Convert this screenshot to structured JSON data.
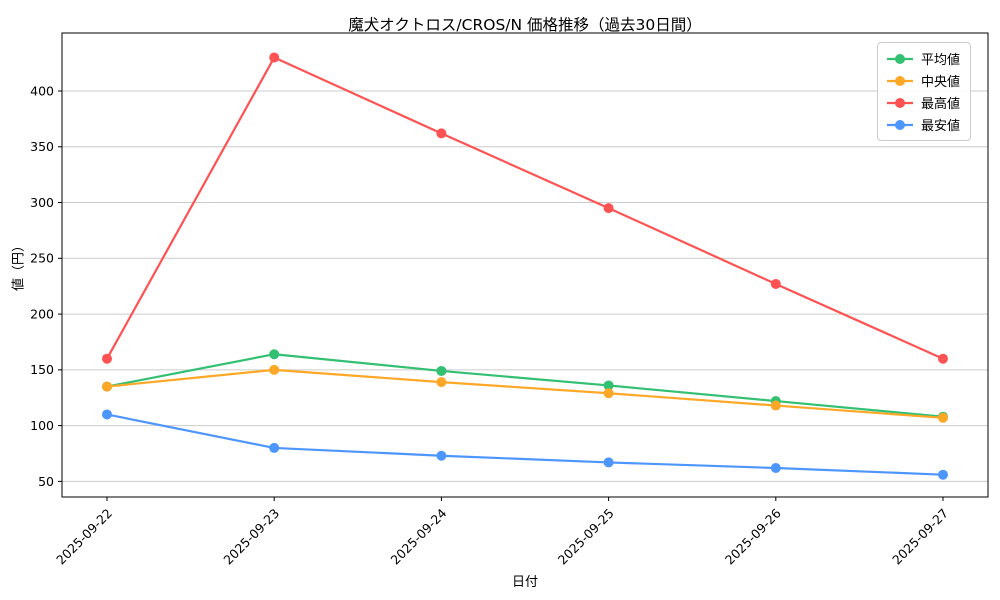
{
  "title": "魔犬オクトロス/CROS/N 価格推移（過去30日間）",
  "chart_data": {
    "type": "line",
    "title": "魔犬オクトロス/CROS/N 価格推移（過去30日間）",
    "xlabel": "日付",
    "ylabel": "値（円）",
    "categories": [
      "2025-09-22",
      "2025-09-23",
      "2025-09-24",
      "2025-09-25",
      "2025-09-26",
      "2025-09-27"
    ],
    "series": [
      {
        "name": "平均値",
        "color": "#33c072",
        "values": [
          135,
          164,
          149,
          136,
          122,
          108
        ]
      },
      {
        "name": "中央値",
        "color": "#ffa726",
        "values": [
          135,
          150,
          139,
          129,
          118,
          107
        ]
      },
      {
        "name": "最高値",
        "color": "#ff5252",
        "values": [
          160,
          430,
          362,
          295,
          227,
          160
        ]
      },
      {
        "name": "最安値",
        "color": "#4e96ff",
        "values": [
          110,
          80,
          73,
          67,
          62,
          56
        ]
      }
    ],
    "y_ticks": [
      50,
      100,
      150,
      200,
      250,
      300,
      350,
      400
    ],
    "ylim": [
      36,
      452
    ],
    "grid": true,
    "grid_color": "#cccccc",
    "legend_position": "upper right",
    "x_tick_rotation": 45
  }
}
